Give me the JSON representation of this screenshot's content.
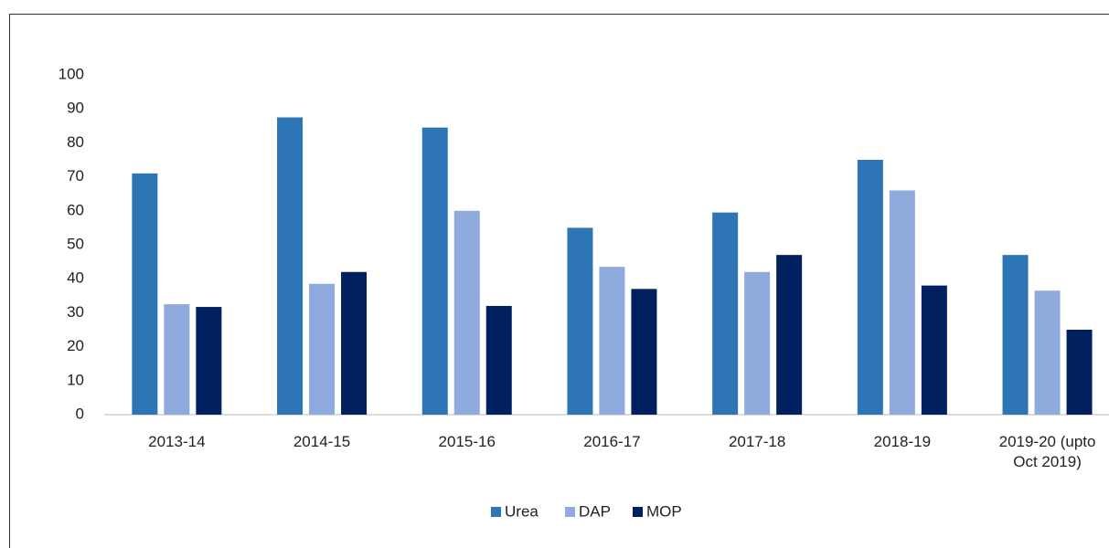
{
  "chart_data": {
    "type": "bar",
    "categories": [
      "2013-14",
      "2014-15",
      "2015-16",
      "2016-17",
      "2017-18",
      "2018-19",
      "2019-20 (upto Oct 2019)"
    ],
    "series": [
      {
        "name": "Urea",
        "color": "#2e75b6",
        "values": [
          71,
          87.5,
          84.5,
          55,
          59.5,
          75,
          47
        ]
      },
      {
        "name": "DAP",
        "color": "#8faadc",
        "values": [
          32.5,
          38.5,
          60,
          43.5,
          42,
          66,
          36.5
        ]
      },
      {
        "name": "MOP",
        "color": "#002060",
        "values": [
          31.7,
          42,
          32,
          37,
          47,
          38,
          25
        ]
      }
    ],
    "ylim": [
      0,
      100
    ],
    "yticks": [
      0,
      10,
      20,
      30,
      40,
      50,
      60,
      70,
      80,
      90,
      100
    ],
    "grid": false,
    "legend": "bottom"
  }
}
